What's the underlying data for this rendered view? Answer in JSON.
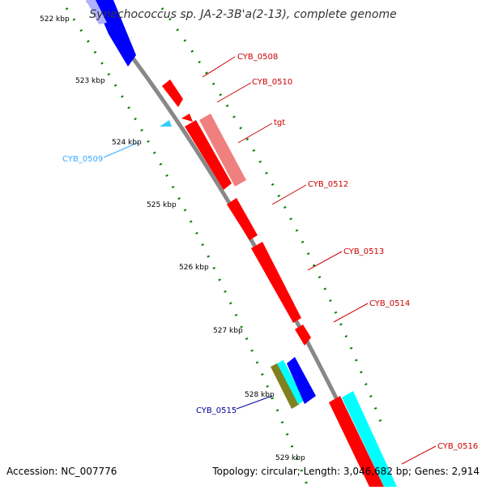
{
  "title": "Synechococcus sp. JA-2-3B'a(2-13), complete genome",
  "accession_label": "Accession: NC_007776",
  "summary_label": "Topology: circular; Length: 3,046,682 bp; Genes: 2,914",
  "scale_labels": [
    "522 kbp",
    "523 kbp",
    "524 kbp",
    "525 kbp",
    "526 kbp",
    "527 kbp",
    "528 kbp",
    "529 kbp"
  ],
  "gene_labels": {
    "cyb0508": "CYB_0508",
    "cyb0510": "CYB_0510",
    "tgt": "tgt",
    "cyb0509": "CYB_0509",
    "cyb0512": "CYB_0512",
    "cyb0513": "CYB_0513",
    "cyb0514": "CYB_0514",
    "cyb0515": "CYB_0515",
    "cyb0516": "CYB_0516"
  },
  "colors": {
    "forward_cds": "#ff0000",
    "forward_light": "#f08080",
    "reverse_cds": "#0000ff",
    "reverse_light": "#33ccff",
    "cyan_feature": "#00ffff",
    "olive_feature": "#808020",
    "backbone": "#888888",
    "tick": "#008000",
    "label_red": "#cc0000",
    "label_blue": "#000099"
  }
}
